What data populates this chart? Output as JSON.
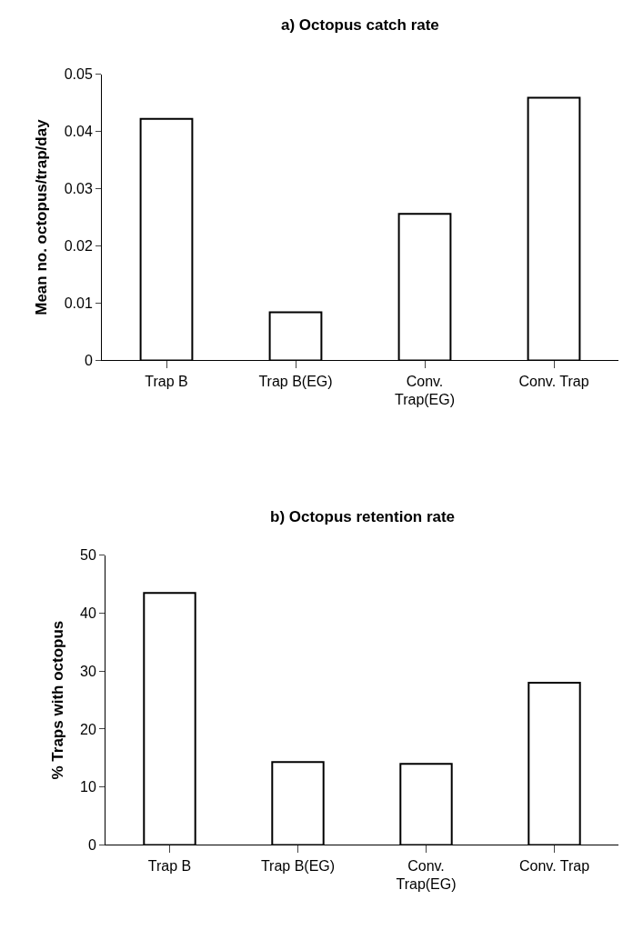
{
  "chart_data": [
    {
      "type": "bar",
      "title": "a) Octopus catch rate",
      "ylabel": "Mean no. octopus/trap/day",
      "categories": [
        "Trap B",
        "Trap B(EG)",
        "Conv. Trap(EG)",
        "Conv. Trap"
      ],
      "values": [
        0.0422,
        0.0084,
        0.0256,
        0.0459
      ],
      "color": "#ffffff",
      "ylim": [
        0,
        0.05
      ],
      "yticks": [
        0,
        0.01,
        0.02,
        0.03,
        0.04,
        0.05
      ],
      "grid": false
    },
    {
      "type": "bar",
      "title": "b) Octopus retention rate",
      "ylabel": "% Traps with octopus",
      "categories": [
        "Trap B",
        "Trap B(EG)",
        "Conv. Trap(EG)",
        "Conv. Trap"
      ],
      "values": [
        43.5,
        14.3,
        14.0,
        28.0
      ],
      "color": "#ffffff",
      "ylim": [
        0,
        50
      ],
      "yticks": [
        0,
        10,
        20,
        30,
        40,
        50
      ],
      "grid": false
    }
  ]
}
